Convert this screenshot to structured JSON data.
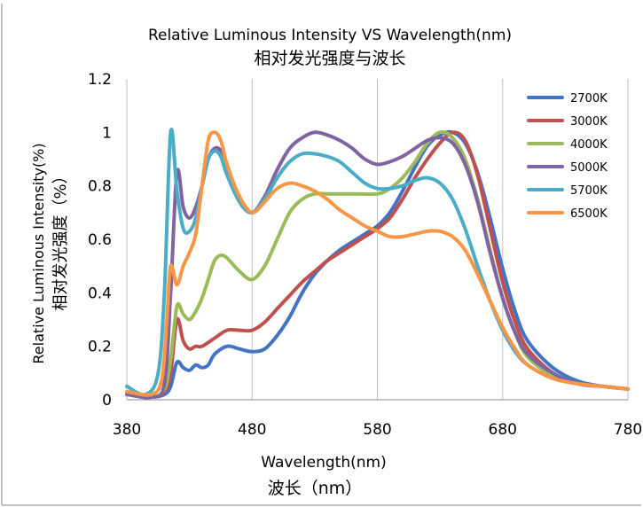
{
  "chart_data": {
    "type": "line",
    "title": "Relative Luminous Intensity VS Wavelength(nm)",
    "subtitle": "相对发光强度与波长",
    "xlabel": "Wavelength(nm)",
    "xlabel_cn": "波长（nm）",
    "ylabel": "Relative Luminous Intensity(%)",
    "ylabel_cn": "相对发光强度（%）",
    "xlim": [
      380,
      780
    ],
    "ylim": [
      0,
      1.2
    ],
    "x_ticks": [
      "380",
      "480",
      "580",
      "680",
      "780"
    ],
    "y_ticks": [
      "0",
      "0.2",
      "0.4",
      "0.6",
      "0.8",
      "1",
      "1.2"
    ],
    "x_tick_values": [
      380,
      480,
      580,
      680,
      780
    ],
    "y_tick_values": [
      0,
      0.2,
      0.4,
      0.6,
      0.8,
      1.0,
      1.2
    ],
    "grid": "vertical",
    "legend_position": "top-right",
    "series": [
      {
        "name": "2700K",
        "color": "#4472C4",
        "points": [
          [
            380,
            0.02
          ],
          [
            400,
            0.01
          ],
          [
            410,
            0.02
          ],
          [
            415,
            0.05
          ],
          [
            420,
            0.14
          ],
          [
            425,
            0.12
          ],
          [
            430,
            0.11
          ],
          [
            435,
            0.13
          ],
          [
            440,
            0.12
          ],
          [
            445,
            0.13
          ],
          [
            450,
            0.17
          ],
          [
            460,
            0.2
          ],
          [
            470,
            0.19
          ],
          [
            480,
            0.18
          ],
          [
            490,
            0.19
          ],
          [
            500,
            0.24
          ],
          [
            510,
            0.31
          ],
          [
            520,
            0.4
          ],
          [
            530,
            0.47
          ],
          [
            540,
            0.52
          ],
          [
            550,
            0.56
          ],
          [
            560,
            0.59
          ],
          [
            570,
            0.62
          ],
          [
            580,
            0.65
          ],
          [
            590,
            0.7
          ],
          [
            600,
            0.78
          ],
          [
            610,
            0.87
          ],
          [
            620,
            0.95
          ],
          [
            630,
            0.99
          ],
          [
            640,
            1.0
          ],
          [
            650,
            0.96
          ],
          [
            660,
            0.85
          ],
          [
            670,
            0.68
          ],
          [
            680,
            0.49
          ],
          [
            690,
            0.33
          ],
          [
            700,
            0.22
          ],
          [
            720,
            0.12
          ],
          [
            740,
            0.07
          ],
          [
            760,
            0.05
          ],
          [
            780,
            0.04
          ]
        ]
      },
      {
        "name": "3000K",
        "color": "#C0504D",
        "points": [
          [
            380,
            0.02
          ],
          [
            400,
            0.01
          ],
          [
            410,
            0.03
          ],
          [
            415,
            0.1
          ],
          [
            420,
            0.3
          ],
          [
            425,
            0.22
          ],
          [
            430,
            0.19
          ],
          [
            435,
            0.2
          ],
          [
            440,
            0.2
          ],
          [
            450,
            0.23
          ],
          [
            460,
            0.26
          ],
          [
            470,
            0.26
          ],
          [
            480,
            0.26
          ],
          [
            490,
            0.29
          ],
          [
            500,
            0.34
          ],
          [
            510,
            0.39
          ],
          [
            520,
            0.44
          ],
          [
            530,
            0.48
          ],
          [
            540,
            0.52
          ],
          [
            550,
            0.55
          ],
          [
            560,
            0.58
          ],
          [
            570,
            0.61
          ],
          [
            580,
            0.64
          ],
          [
            590,
            0.68
          ],
          [
            600,
            0.75
          ],
          [
            610,
            0.83
          ],
          [
            620,
            0.9
          ],
          [
            630,
            0.96
          ],
          [
            640,
            1.0
          ],
          [
            650,
            0.97
          ],
          [
            660,
            0.84
          ],
          [
            670,
            0.64
          ],
          [
            680,
            0.44
          ],
          [
            690,
            0.29
          ],
          [
            700,
            0.19
          ],
          [
            720,
            0.1
          ],
          [
            740,
            0.06
          ],
          [
            760,
            0.05
          ],
          [
            780,
            0.04
          ]
        ]
      },
      {
        "name": "4000K",
        "color": "#9BBB59",
        "points": [
          [
            380,
            0.02
          ],
          [
            400,
            0.01
          ],
          [
            410,
            0.04
          ],
          [
            415,
            0.15
          ],
          [
            420,
            0.35
          ],
          [
            425,
            0.32
          ],
          [
            430,
            0.3
          ],
          [
            435,
            0.33
          ],
          [
            440,
            0.38
          ],
          [
            445,
            0.45
          ],
          [
            450,
            0.52
          ],
          [
            455,
            0.54
          ],
          [
            460,
            0.53
          ],
          [
            470,
            0.48
          ],
          [
            480,
            0.45
          ],
          [
            490,
            0.5
          ],
          [
            500,
            0.6
          ],
          [
            510,
            0.7
          ],
          [
            520,
            0.75
          ],
          [
            530,
            0.77
          ],
          [
            540,
            0.77
          ],
          [
            560,
            0.77
          ],
          [
            580,
            0.77
          ],
          [
            590,
            0.79
          ],
          [
            600,
            0.83
          ],
          [
            610,
            0.89
          ],
          [
            620,
            0.96
          ],
          [
            630,
            1.0
          ],
          [
            640,
            0.98
          ],
          [
            650,
            0.9
          ],
          [
            660,
            0.75
          ],
          [
            670,
            0.56
          ],
          [
            680,
            0.38
          ],
          [
            690,
            0.25
          ],
          [
            700,
            0.16
          ],
          [
            720,
            0.09
          ],
          [
            740,
            0.06
          ],
          [
            760,
            0.05
          ],
          [
            780,
            0.04
          ]
        ]
      },
      {
        "name": "5000K",
        "color": "#8064A2",
        "points": [
          [
            380,
            0.02
          ],
          [
            400,
            0.01
          ],
          [
            410,
            0.06
          ],
          [
            415,
            0.4
          ],
          [
            420,
            0.85
          ],
          [
            425,
            0.72
          ],
          [
            430,
            0.68
          ],
          [
            435,
            0.72
          ],
          [
            440,
            0.8
          ],
          [
            445,
            0.9
          ],
          [
            450,
            0.94
          ],
          [
            455,
            0.93
          ],
          [
            460,
            0.86
          ],
          [
            470,
            0.74
          ],
          [
            480,
            0.7
          ],
          [
            490,
            0.76
          ],
          [
            500,
            0.86
          ],
          [
            510,
            0.94
          ],
          [
            520,
            0.98
          ],
          [
            530,
            1.0
          ],
          [
            540,
            0.99
          ],
          [
            550,
            0.97
          ],
          [
            560,
            0.94
          ],
          [
            570,
            0.9
          ],
          [
            580,
            0.88
          ],
          [
            590,
            0.89
          ],
          [
            600,
            0.91
          ],
          [
            610,
            0.94
          ],
          [
            620,
            0.97
          ],
          [
            630,
            0.98
          ],
          [
            640,
            0.96
          ],
          [
            650,
            0.88
          ],
          [
            660,
            0.74
          ],
          [
            670,
            0.55
          ],
          [
            680,
            0.38
          ],
          [
            690,
            0.25
          ],
          [
            700,
            0.17
          ],
          [
            720,
            0.1
          ],
          [
            740,
            0.06
          ],
          [
            760,
            0.05
          ],
          [
            780,
            0.04
          ]
        ]
      },
      {
        "name": "5700K",
        "color": "#4BACC6",
        "points": [
          [
            380,
            0.05
          ],
          [
            395,
            0.02
          ],
          [
            405,
            0.1
          ],
          [
            410,
            0.4
          ],
          [
            415,
            1.0
          ],
          [
            420,
            0.78
          ],
          [
            425,
            0.64
          ],
          [
            430,
            0.63
          ],
          [
            435,
            0.68
          ],
          [
            440,
            0.8
          ],
          [
            445,
            0.9
          ],
          [
            450,
            0.93
          ],
          [
            455,
            0.91
          ],
          [
            460,
            0.84
          ],
          [
            470,
            0.74
          ],
          [
            480,
            0.7
          ],
          [
            490,
            0.75
          ],
          [
            500,
            0.83
          ],
          [
            510,
            0.89
          ],
          [
            520,
            0.92
          ],
          [
            530,
            0.92
          ],
          [
            540,
            0.91
          ],
          [
            550,
            0.89
          ],
          [
            560,
            0.85
          ],
          [
            570,
            0.81
          ],
          [
            580,
            0.79
          ],
          [
            590,
            0.79
          ],
          [
            600,
            0.8
          ],
          [
            610,
            0.82
          ],
          [
            620,
            0.83
          ],
          [
            630,
            0.81
          ],
          [
            640,
            0.75
          ],
          [
            650,
            0.64
          ],
          [
            660,
            0.5
          ],
          [
            670,
            0.37
          ],
          [
            680,
            0.26
          ],
          [
            690,
            0.18
          ],
          [
            700,
            0.13
          ],
          [
            720,
            0.08
          ],
          [
            740,
            0.06
          ],
          [
            760,
            0.05
          ],
          [
            780,
            0.04
          ]
        ]
      },
      {
        "name": "6500K",
        "color": "#F79646",
        "points": [
          [
            380,
            0.03
          ],
          [
            400,
            0.02
          ],
          [
            408,
            0.08
          ],
          [
            412,
            0.3
          ],
          [
            415,
            0.5
          ],
          [
            420,
            0.43
          ],
          [
            425,
            0.5
          ],
          [
            430,
            0.55
          ],
          [
            435,
            0.62
          ],
          [
            440,
            0.8
          ],
          [
            445,
            0.97
          ],
          [
            450,
            1.0
          ],
          [
            455,
            0.97
          ],
          [
            460,
            0.88
          ],
          [
            470,
            0.76
          ],
          [
            480,
            0.7
          ],
          [
            490,
            0.74
          ],
          [
            500,
            0.79
          ],
          [
            510,
            0.81
          ],
          [
            520,
            0.8
          ],
          [
            530,
            0.78
          ],
          [
            540,
            0.75
          ],
          [
            550,
            0.71
          ],
          [
            560,
            0.68
          ],
          [
            570,
            0.65
          ],
          [
            580,
            0.63
          ],
          [
            590,
            0.61
          ],
          [
            600,
            0.61
          ],
          [
            610,
            0.62
          ],
          [
            620,
            0.63
          ],
          [
            630,
            0.63
          ],
          [
            640,
            0.61
          ],
          [
            650,
            0.56
          ],
          [
            660,
            0.47
          ],
          [
            670,
            0.37
          ],
          [
            680,
            0.27
          ],
          [
            690,
            0.19
          ],
          [
            700,
            0.13
          ],
          [
            720,
            0.08
          ],
          [
            740,
            0.06
          ],
          [
            760,
            0.05
          ],
          [
            780,
            0.04
          ]
        ]
      }
    ]
  }
}
